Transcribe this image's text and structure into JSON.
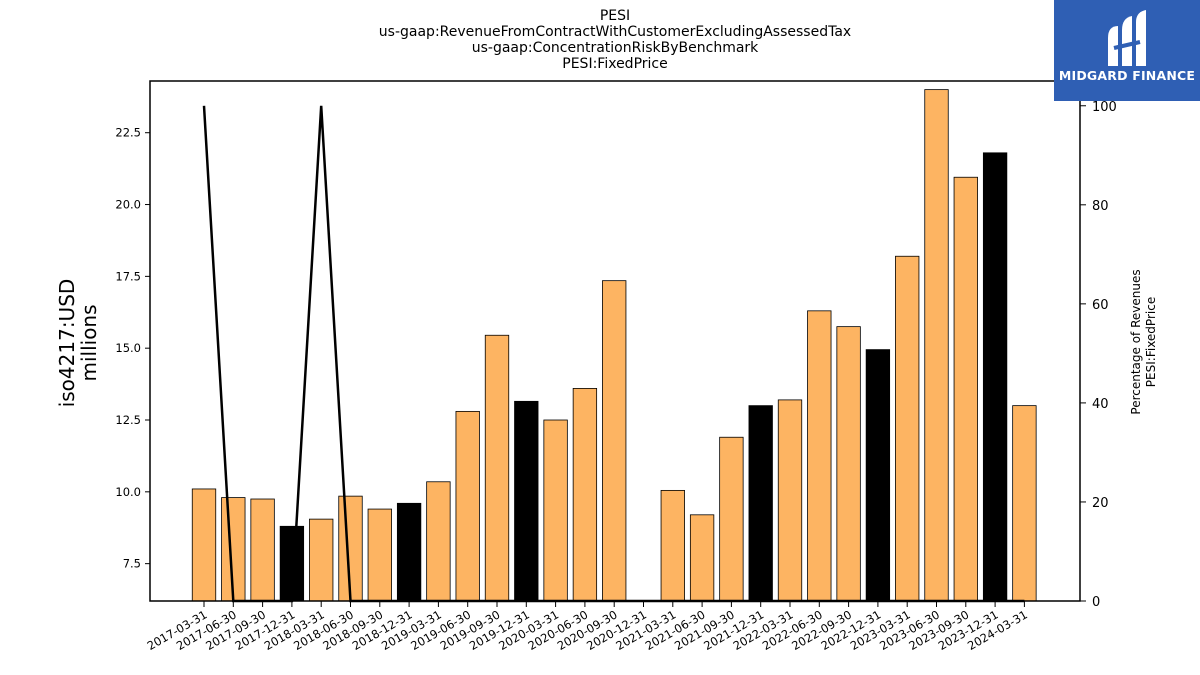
{
  "logo": {
    "text": "MIDGARD FINANCE",
    "bg_color": "#2f5fb4"
  },
  "chart_data": {
    "type": "bar",
    "title_lines": [
      "PESI",
      "us-gaap:RevenueFromContractWithCustomerExcludingAssessedTax",
      "us-gaap:ConcentrationRiskByBenchmark",
      "PESI:FixedPrice"
    ],
    "ylabel": [
      "iso4217:USD",
      "millions"
    ],
    "y2label": [
      "Percentage of Revenues",
      "PESI:FixedPrice"
    ],
    "ylim": [
      6.2,
      24.3
    ],
    "y_ticks": [
      "7.5",
      "10.0",
      "12.5",
      "15.0",
      "17.5",
      "20.0",
      "22.5"
    ],
    "y2lim": [
      0,
      105
    ],
    "y2_ticks": [
      "0",
      "20",
      "40",
      "60",
      "80",
      "100"
    ],
    "categories": [
      "2017-03-31",
      "2017-06-30",
      "2017-09-30",
      "2017-12-31",
      "2018-03-31",
      "2018-06-30",
      "2018-09-30",
      "2018-12-31",
      "2019-03-31",
      "2019-06-30",
      "2019-09-30",
      "2019-12-31",
      "2020-03-31",
      "2020-06-30",
      "2020-09-30",
      "2020-12-31",
      "2021-03-31",
      "2021-06-30",
      "2021-09-30",
      "2021-12-31",
      "2022-03-31",
      "2022-06-30",
      "2022-09-30",
      "2022-12-31",
      "2023-03-31",
      "2023-06-30",
      "2023-09-30",
      "2023-12-31",
      "2024-03-31"
    ],
    "bars": [
      {
        "value": 10.1,
        "color": "#fdb462"
      },
      {
        "value": 9.8,
        "color": "#fdb462"
      },
      {
        "value": 9.75,
        "color": "#fdb462"
      },
      {
        "value": 8.8,
        "color": "#000000"
      },
      {
        "value": 9.05,
        "color": "#fdb462"
      },
      {
        "value": 9.85,
        "color": "#fdb462"
      },
      {
        "value": 9.4,
        "color": "#fdb462"
      },
      {
        "value": 9.6,
        "color": "#000000"
      },
      {
        "value": 10.35,
        "color": "#fdb462"
      },
      {
        "value": 12.8,
        "color": "#fdb462"
      },
      {
        "value": 15.45,
        "color": "#fdb462"
      },
      {
        "value": 13.15,
        "color": "#000000"
      },
      {
        "value": 12.5,
        "color": "#fdb462"
      },
      {
        "value": 13.6,
        "color": "#fdb462"
      },
      {
        "value": 17.35,
        "color": "#fdb462"
      },
      {
        "value": null,
        "color": "#fdb462"
      },
      {
        "value": 10.05,
        "color": "#fdb462"
      },
      {
        "value": 9.2,
        "color": "#fdb462"
      },
      {
        "value": 11.9,
        "color": "#fdb462"
      },
      {
        "value": 13.0,
        "color": "#000000"
      },
      {
        "value": 13.2,
        "color": "#fdb462"
      },
      {
        "value": 16.3,
        "color": "#fdb462"
      },
      {
        "value": 15.75,
        "color": "#fdb462"
      },
      {
        "value": 14.95,
        "color": "#000000"
      },
      {
        "value": 18.2,
        "color": "#fdb462"
      },
      {
        "value": 24.0,
        "color": "#fdb462"
      },
      {
        "value": 20.95,
        "color": "#fdb462"
      },
      {
        "value": 21.8,
        "color": "#000000"
      },
      {
        "value": 13.0,
        "color": "#fdb462"
      }
    ],
    "line_series": {
      "axis": "right",
      "color": "#000000",
      "values": [
        100,
        0,
        0,
        0,
        100,
        0,
        0,
        0,
        0,
        0,
        0,
        0,
        0,
        0,
        0,
        0,
        0,
        0,
        0,
        0,
        0,
        0,
        0,
        0,
        0,
        0,
        0,
        0,
        0
      ]
    }
  }
}
